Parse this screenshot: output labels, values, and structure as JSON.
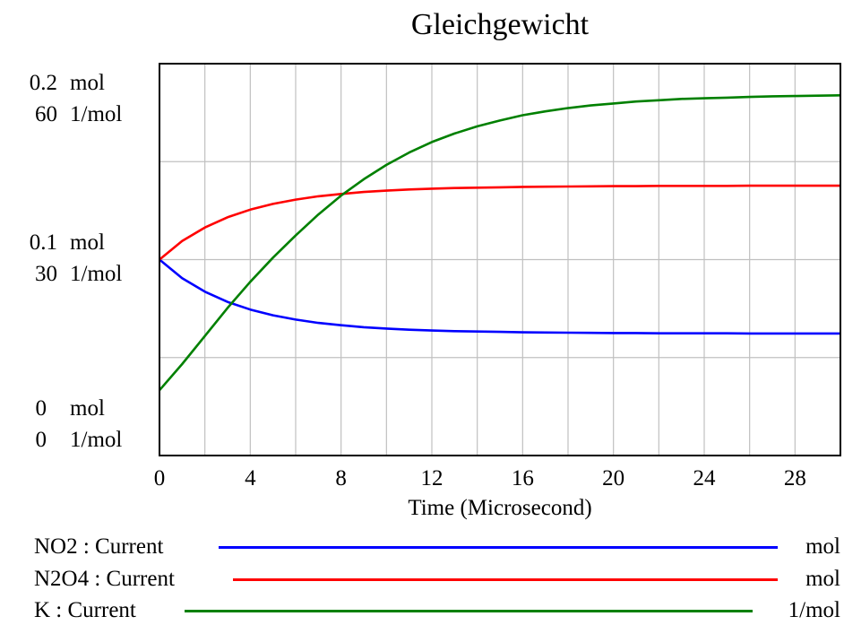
{
  "chart_data": {
    "type": "line",
    "title": "Gleichgewicht",
    "xlabel": "Time (Microsecond)",
    "x_ticks": [
      "0",
      "4",
      "8",
      "12",
      "16",
      "20",
      "24",
      "28"
    ],
    "xlim": [
      0,
      30
    ],
    "y_axes": [
      {
        "unit": "mol",
        "ylim": [
          0,
          0.2
        ],
        "tick_values": [
          "0",
          "0.1",
          "0.2"
        ]
      },
      {
        "unit": "1/mol",
        "ylim": [
          0,
          60
        ],
        "tick_values": [
          "0",
          "30",
          "60"
        ]
      }
    ],
    "grid": true,
    "legend_position": "bottom",
    "series": [
      {
        "name": "NO2 : Current",
        "unit": "mol",
        "axis": 0,
        "color": "#0000ff",
        "x": [
          0,
          1,
          2,
          3,
          4,
          5,
          6,
          7,
          8,
          9,
          10,
          11,
          12,
          13,
          14,
          15,
          16,
          17,
          18,
          19,
          20,
          21,
          22,
          23,
          24,
          25,
          26,
          27,
          28,
          29,
          30
        ],
        "y": [
          0.1,
          0.0905,
          0.0836,
          0.0784,
          0.0745,
          0.0716,
          0.0694,
          0.0677,
          0.0665,
          0.0655,
          0.0648,
          0.0642,
          0.0638,
          0.0635,
          0.0633,
          0.0631,
          0.0629,
          0.0628,
          0.0627,
          0.0626,
          0.0625,
          0.0625,
          0.0624,
          0.0624,
          0.0624,
          0.0624,
          0.0623,
          0.0623,
          0.0623,
          0.0623,
          0.0623
        ]
      },
      {
        "name": "N2O4 : Current",
        "unit": "mol",
        "axis": 0,
        "color": "#ff0000",
        "x": [
          0,
          1,
          2,
          3,
          4,
          5,
          6,
          7,
          8,
          9,
          10,
          11,
          12,
          13,
          14,
          15,
          16,
          17,
          18,
          19,
          20,
          21,
          22,
          23,
          24,
          25,
          26,
          27,
          28,
          29,
          30
        ],
        "y": [
          0.1,
          0.1095,
          0.1164,
          0.1216,
          0.1255,
          0.1284,
          0.1306,
          0.1323,
          0.1335,
          0.1345,
          0.1352,
          0.1358,
          0.1362,
          0.1365,
          0.1367,
          0.1369,
          0.1371,
          0.1372,
          0.1373,
          0.1374,
          0.1375,
          0.1375,
          0.1376,
          0.1376,
          0.1376,
          0.1376,
          0.1377,
          0.1377,
          0.1377,
          0.1377,
          0.1377
        ]
      },
      {
        "name": "K : Current",
        "unit": "1/mol",
        "axis": 1,
        "color": "#008000",
        "x": [
          0,
          1,
          2,
          3,
          4,
          5,
          6,
          7,
          8,
          9,
          10,
          11,
          12,
          13,
          14,
          15,
          16,
          17,
          18,
          19,
          20,
          21,
          22,
          23,
          24,
          25,
          26,
          27,
          28,
          29,
          30
        ],
        "y": [
          10,
          14,
          18.3,
          22.6,
          26.6,
          30.3,
          33.7,
          36.9,
          39.8,
          42.3,
          44.5,
          46.4,
          48,
          49.3,
          50.4,
          51.3,
          52.1,
          52.7,
          53.2,
          53.6,
          53.9,
          54.2,
          54.4,
          54.6,
          54.7,
          54.8,
          54.9,
          55,
          55.05,
          55.1,
          55.15
        ]
      }
    ]
  }
}
